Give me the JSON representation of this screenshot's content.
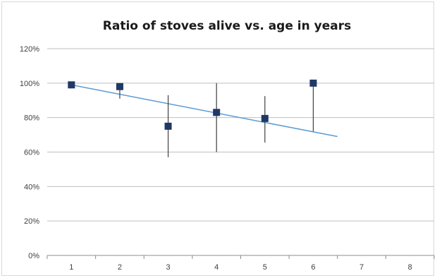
{
  "chart_data": {
    "type": "scatter",
    "title": "Ratio of stoves alive vs. age in years",
    "xlabel": "",
    "ylabel": "",
    "x_categories": [
      "1",
      "2",
      "3",
      "4",
      "5",
      "6",
      "7",
      "8"
    ],
    "y_ticks": [
      "0%",
      "20%",
      "40%",
      "60%",
      "80%",
      "100%",
      "120%"
    ],
    "ylim": [
      0,
      1.2
    ],
    "grid": "horizontal",
    "legend": "none",
    "series": [
      {
        "x": [
          1,
          2,
          3,
          4,
          5,
          6
        ],
        "y": [
          0.99,
          0.98,
          0.75,
          0.83,
          0.795,
          1.0
        ],
        "error_low": [
          0.97,
          0.91,
          0.57,
          0.6,
          0.655,
          0.72
        ],
        "error_high": [
          1.0,
          1.0,
          0.93,
          1.0,
          0.925,
          1.0
        ]
      }
    ],
    "trendline": {
      "type": "linear",
      "x": [
        1,
        6.5
      ],
      "y": [
        0.99,
        0.69
      ]
    },
    "colors": {
      "marker": "#1f3864",
      "trendline": "#5b9bd5",
      "grid": "#bfbfbf",
      "error_bar": "#404040"
    }
  }
}
